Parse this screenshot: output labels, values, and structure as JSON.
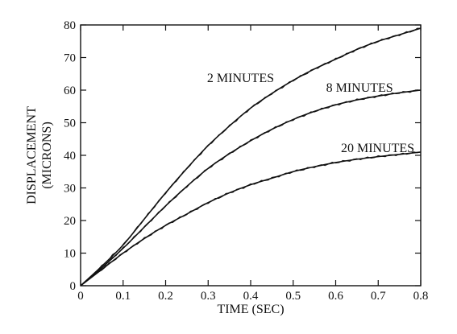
{
  "chart_data": {
    "type": "line",
    "title": "",
    "xlabel": "TIME (SEC)",
    "ylabel": "DISPLACEMENT",
    "ylabel_units": "(MICRONS)",
    "xlim": [
      0,
      0.8
    ],
    "ylim": [
      0,
      80
    ],
    "x_ticks": [
      0,
      0.1,
      0.2,
      0.3,
      0.4,
      0.5,
      0.6,
      0.7,
      0.8
    ],
    "y_ticks": [
      0,
      10,
      20,
      30,
      40,
      50,
      60,
      70,
      80
    ],
    "grid": false,
    "legend": "none",
    "x": [
      0,
      0.05,
      0.1,
      0.15,
      0.2,
      0.25,
      0.3,
      0.35,
      0.4,
      0.45,
      0.5,
      0.55,
      0.6,
      0.65,
      0.7,
      0.75,
      0.8
    ],
    "series": [
      {
        "name": "2 MINUTES",
        "values": [
          0,
          6,
          12.5,
          20.5,
          28.5,
          36,
          43,
          49,
          54.5,
          59,
          63,
          66.5,
          69.5,
          72.5,
          75,
          77,
          79
        ]
      },
      {
        "name": "8 MINUTES",
        "values": [
          0,
          5.5,
          11.5,
          18,
          24.5,
          30.5,
          36,
          40.5,
          44.5,
          48,
          51,
          53.5,
          55.5,
          57,
          58.2,
          59.2,
          60
        ]
      },
      {
        "name": "20 MINUTES",
        "values": [
          0,
          5,
          10,
          14.5,
          18.5,
          22,
          25.5,
          28.5,
          31,
          33,
          35,
          36.5,
          37.8,
          38.8,
          39.6,
          40.3,
          41
        ]
      }
    ]
  }
}
